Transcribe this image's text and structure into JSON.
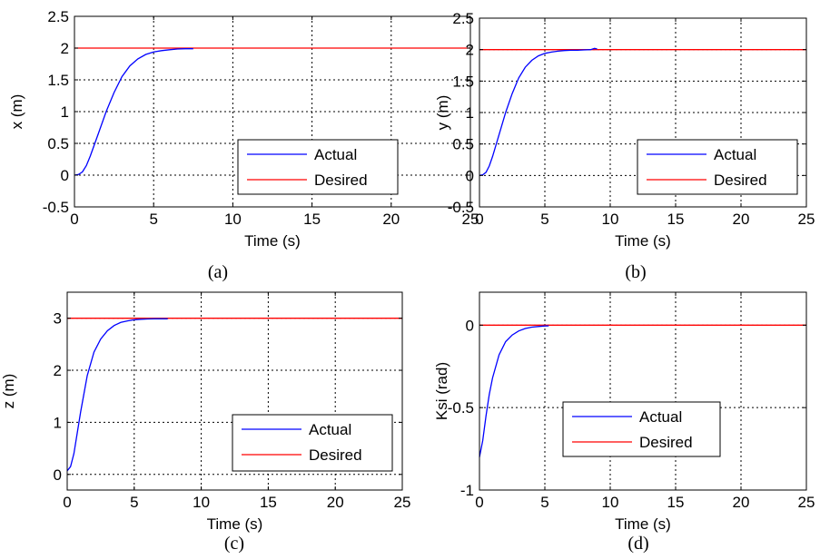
{
  "chart_data": [
    {
      "id": "a",
      "type": "line",
      "caption": "(a)",
      "xlabel": "Time (s)",
      "ylabel": "x (m)",
      "xlim": [
        0,
        25
      ],
      "ylim": [
        -0.5,
        2.5
      ],
      "xticks": [
        0,
        5,
        10,
        15,
        20,
        25
      ],
      "yticks": [
        -0.5,
        0,
        0.5,
        1,
        1.5,
        2,
        2.5
      ],
      "ytick_labels": [
        "-0.5",
        "0",
        "0.5",
        "1",
        "1.5",
        "2",
        "2.5"
      ],
      "grid": true,
      "legend_position": "lower-right",
      "series": [
        {
          "name": "Actual",
          "color": "#0000ff",
          "x": [
            0,
            0.25,
            0.5,
            0.75,
            1,
            1.5,
            2,
            2.5,
            3,
            3.5,
            4,
            4.5,
            5,
            5.5,
            6,
            6.5,
            7,
            7.5
          ],
          "y": [
            0,
            0.01,
            0.05,
            0.15,
            0.3,
            0.65,
            1.0,
            1.3,
            1.55,
            1.72,
            1.83,
            1.9,
            1.94,
            1.96,
            1.975,
            1.985,
            1.99,
            1.99
          ]
        },
        {
          "name": "Desired",
          "color": "#ff0000",
          "x": [
            0,
            25
          ],
          "y": [
            2,
            2
          ]
        }
      ]
    },
    {
      "id": "b",
      "type": "line",
      "caption": "(b)",
      "xlabel": "Time (s)",
      "ylabel": "y (m)",
      "xlim": [
        0,
        25
      ],
      "ylim": [
        -0.5,
        2.5
      ],
      "xticks": [
        0,
        5,
        10,
        15,
        20,
        25
      ],
      "yticks": [
        -0.5,
        0,
        0.5,
        1,
        1.5,
        2,
        2.5
      ],
      "ytick_labels": [
        "-0.5",
        "0",
        "0.5",
        "1",
        "1.5",
        "2",
        "2.5"
      ],
      "grid": true,
      "legend_position": "lower-right",
      "series": [
        {
          "name": "Actual",
          "color": "#0000ff",
          "x": [
            0,
            0.25,
            0.5,
            0.75,
            1,
            1.5,
            2,
            2.5,
            3,
            3.5,
            4,
            4.5,
            5,
            5.5,
            6,
            6.5,
            7,
            7.5,
            8,
            8.5,
            8.8,
            9
          ],
          "y": [
            0,
            0.01,
            0.05,
            0.15,
            0.3,
            0.65,
            1.0,
            1.3,
            1.55,
            1.72,
            1.83,
            1.9,
            1.94,
            1.96,
            1.975,
            1.985,
            1.99,
            1.99,
            1.995,
            2.0,
            2.02,
            2.01
          ]
        },
        {
          "name": "Desired",
          "color": "#ff0000",
          "x": [
            0,
            25
          ],
          "y": [
            2,
            2
          ]
        }
      ]
    },
    {
      "id": "c",
      "type": "line",
      "caption": "(c)",
      "xlabel": "Time (s)",
      "ylabel": "z (m)",
      "xlim": [
        0,
        25
      ],
      "ylim": [
        -0.3,
        3.5
      ],
      "xticks": [
        0,
        5,
        10,
        15,
        20,
        25
      ],
      "yticks": [
        0,
        1,
        2,
        3
      ],
      "ytick_labels": [
        "0",
        "1",
        "2",
        "3"
      ],
      "grid": true,
      "legend_position": "lower-right",
      "series": [
        {
          "name": "Actual",
          "color": "#0000ff",
          "x": [
            0,
            0.25,
            0.5,
            0.75,
            1,
            1.5,
            2,
            2.5,
            3,
            3.5,
            4,
            4.5,
            5,
            5.5,
            6,
            6.5,
            7,
            7.5
          ],
          "y": [
            0.07,
            0.15,
            0.4,
            0.8,
            1.2,
            1.9,
            2.35,
            2.6,
            2.76,
            2.86,
            2.92,
            2.95,
            2.97,
            2.98,
            2.985,
            2.99,
            2.99,
            2.99
          ]
        },
        {
          "name": "Desired",
          "color": "#ff0000",
          "x": [
            0,
            25
          ],
          "y": [
            3,
            3
          ]
        }
      ]
    },
    {
      "id": "d",
      "type": "line",
      "caption": "(d)",
      "xlabel": "Time (s)",
      "ylabel": "Ksi (rad)",
      "xlim": [
        0,
        25
      ],
      "ylim": [
        -1,
        0.2
      ],
      "xticks": [
        0,
        5,
        10,
        15,
        20,
        25
      ],
      "yticks": [
        -1,
        -0.5,
        0
      ],
      "ytick_labels": [
        "-1",
        "-0.5",
        "0"
      ],
      "grid": true,
      "legend_position": "center",
      "series": [
        {
          "name": "Actual",
          "color": "#0000ff",
          "x": [
            0,
            0.25,
            0.5,
            0.75,
            1,
            1.5,
            2,
            2.5,
            3,
            3.5,
            4,
            4.5,
            5,
            5.3
          ],
          "y": [
            -0.8,
            -0.7,
            -0.55,
            -0.42,
            -0.32,
            -0.18,
            -0.1,
            -0.06,
            -0.035,
            -0.02,
            -0.012,
            -0.008,
            -0.005,
            -0.004
          ]
        },
        {
          "name": "Desired",
          "color": "#ff0000",
          "x": [
            0,
            25
          ],
          "y": [
            0,
            0
          ]
        }
      ]
    }
  ]
}
